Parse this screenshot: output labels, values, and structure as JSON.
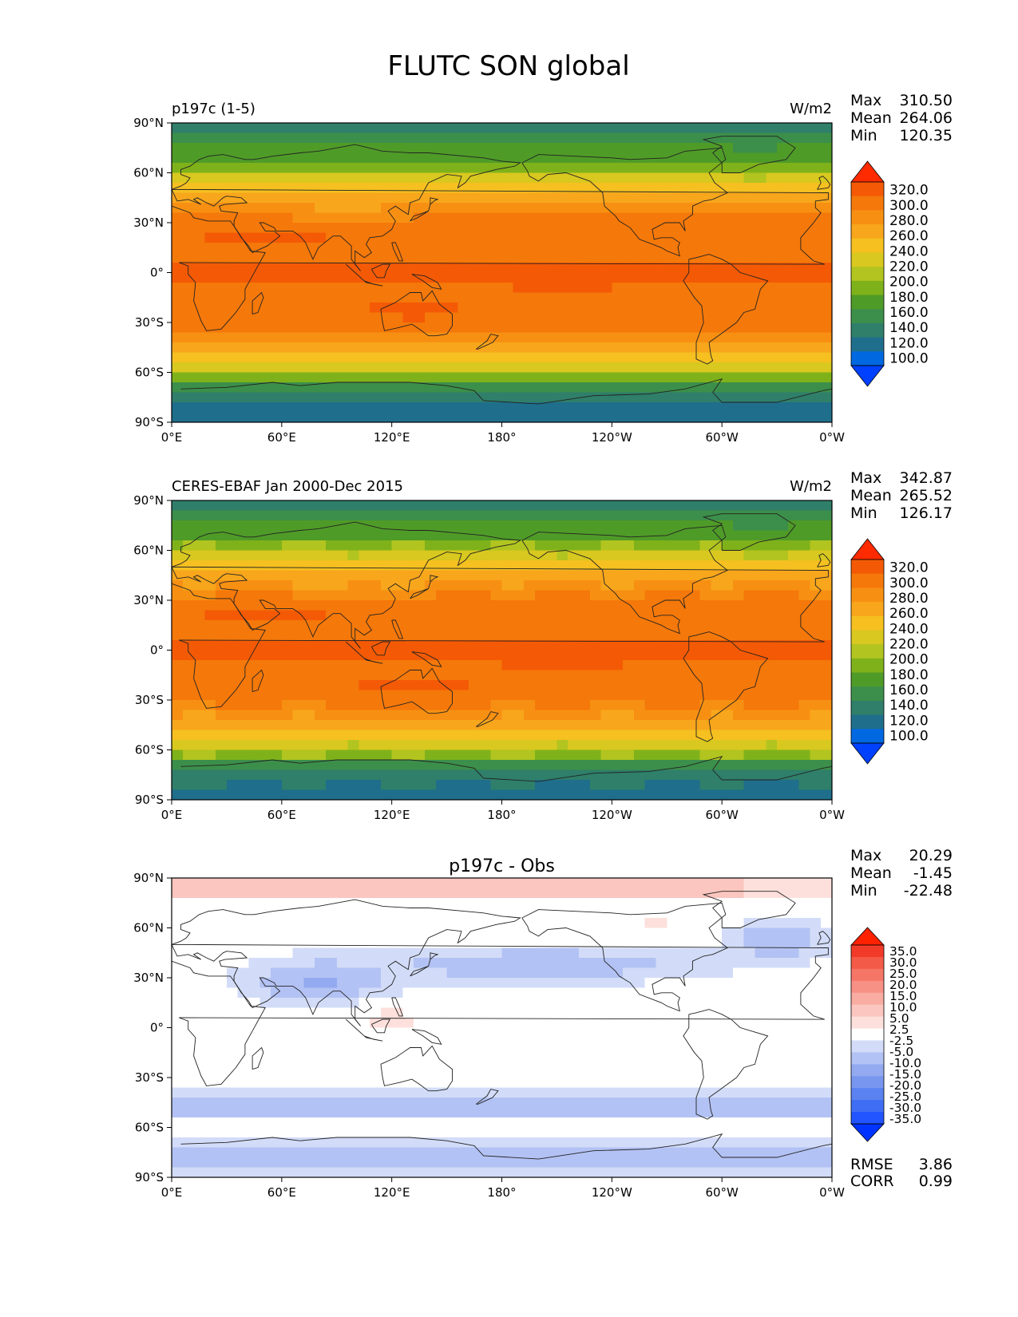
{
  "page_title": "FLUTC SON global",
  "x_ticks": [
    "0°E",
    "60°E",
    "120°E",
    "180°",
    "120°W",
    "60°W",
    "0°W"
  ],
  "y_ticks": [
    "90°N",
    "60°N",
    "30°N",
    "0°",
    "30°S",
    "60°S",
    "90°S"
  ],
  "colors": {
    "flux_scale": [
      "#0040ff",
      "#0068e0",
      "#1f6e8c",
      "#2f7f6a",
      "#3c8f4a",
      "#4f9b28",
      "#7fb21a",
      "#b2c41f",
      "#d8c81f",
      "#f5c020",
      "#f8a61c",
      "#f79012",
      "#f5780a",
      "#f45a05",
      "#ff2b00"
    ],
    "diff_scale": [
      "#0033ff",
      "#2255ff",
      "#3f6ef5",
      "#5a82f0",
      "#7896ee",
      "#94aaf0",
      "#b3c2f4",
      "#d2dcf8",
      "#ffffff",
      "#fde0dc",
      "#fbc6bf",
      "#f9aca2",
      "#f79085",
      "#f57566",
      "#f45a48",
      "#f23a28",
      "#ff2200"
    ],
    "coastline": "#222222"
  },
  "chart_data": [
    {
      "type": "heatmap",
      "title": "p197c (1-5)",
      "units": "W/m2",
      "stats": [
        {
          "label": "Max",
          "value": "310.50"
        },
        {
          "label": "Mean",
          "value": "264.06"
        },
        {
          "label": "Min",
          "value": "120.35"
        }
      ],
      "colorbar_ticks": [
        "320.0",
        "300.0",
        "280.0",
        "260.0",
        "240.0",
        "220.0",
        "200.0",
        "180.0",
        "160.0",
        "140.0",
        "120.0",
        "100.0"
      ],
      "colorbar_levels": [
        100,
        120,
        140,
        160,
        180,
        200,
        210,
        220,
        230,
        240,
        250,
        260,
        280,
        300,
        320
      ],
      "xlim": [
        0,
        360
      ],
      "ylim": [
        -90,
        90
      ]
    },
    {
      "type": "heatmap",
      "title": "CERES-EBAF Jan 2000-Dec 2015",
      "units": "W/m2",
      "stats": [
        {
          "label": "Max",
          "value": "342.87"
        },
        {
          "label": "Mean",
          "value": "265.52"
        },
        {
          "label": "Min",
          "value": "126.17"
        }
      ],
      "colorbar_ticks": [
        "320.0",
        "300.0",
        "280.0",
        "260.0",
        "240.0",
        "220.0",
        "200.0",
        "180.0",
        "160.0",
        "140.0",
        "120.0",
        "100.0"
      ],
      "colorbar_levels": [
        100,
        120,
        140,
        160,
        180,
        200,
        210,
        220,
        230,
        240,
        250,
        260,
        280,
        300,
        320
      ],
      "xlim": [
        0,
        360
      ],
      "ylim": [
        -90,
        90
      ]
    },
    {
      "type": "heatmap",
      "title": "p197c - Obs",
      "stats": [
        {
          "label": "Max",
          "value": "20.29"
        },
        {
          "label": "Mean",
          "value": "-1.45"
        },
        {
          "label": "Min",
          "value": "-22.48"
        }
      ],
      "colorbar_ticks": [
        "35.0",
        "30.0",
        "25.0",
        "20.0",
        "15.0",
        "10.0",
        "5.0",
        "2.5",
        "-2.5",
        "-5.0",
        "-10.0",
        "-15.0",
        "-20.0",
        "-25.0",
        "-30.0",
        "-35.0"
      ],
      "colorbar_levels": [
        -35,
        -30,
        -25,
        -20,
        -15,
        -10,
        -5,
        -2.5,
        2.5,
        5,
        10,
        15,
        20,
        25,
        30,
        35
      ],
      "footer_stats": [
        {
          "label": "RMSE",
          "value": "3.86"
        },
        {
          "label": "CORR",
          "value": "0.99"
        }
      ],
      "xlim": [
        0,
        360
      ],
      "ylim": [
        -90,
        90
      ]
    }
  ]
}
